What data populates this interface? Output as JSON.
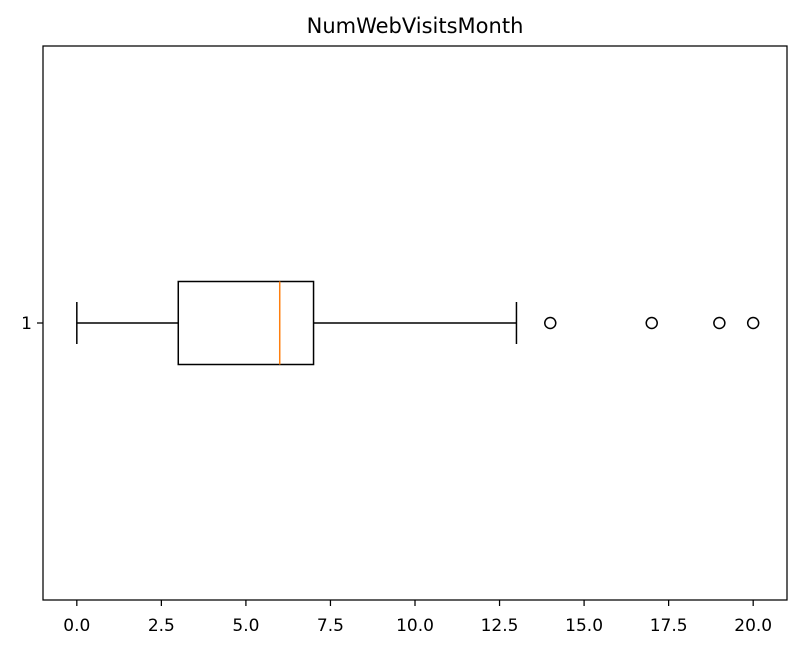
{
  "chart_data": {
    "type": "boxplot",
    "orientation": "horizontal",
    "title": "NumWebVisitsMonth",
    "xlabel": "",
    "ylabel": "",
    "xlim": [
      -1.0,
      21.0
    ],
    "x_ticks": [
      0.0,
      2.5,
      5.0,
      7.5,
      10.0,
      12.5,
      15.0,
      17.5,
      20.0
    ],
    "x_tick_labels": [
      "0.0",
      "2.5",
      "5.0",
      "7.5",
      "10.0",
      "12.5",
      "15.0",
      "17.5",
      "20.0"
    ],
    "y_tick_labels": [
      "1"
    ],
    "grid": false,
    "boxes": [
      {
        "category": "1",
        "whisker_low": 0,
        "q1": 3,
        "median": 6,
        "q3": 7,
        "whisker_high": 13,
        "outliers": [
          14,
          17,
          19,
          20
        ]
      }
    ],
    "colors": {
      "box": "#000000",
      "median": "#ff7f0e",
      "outlier": "#000000"
    }
  }
}
